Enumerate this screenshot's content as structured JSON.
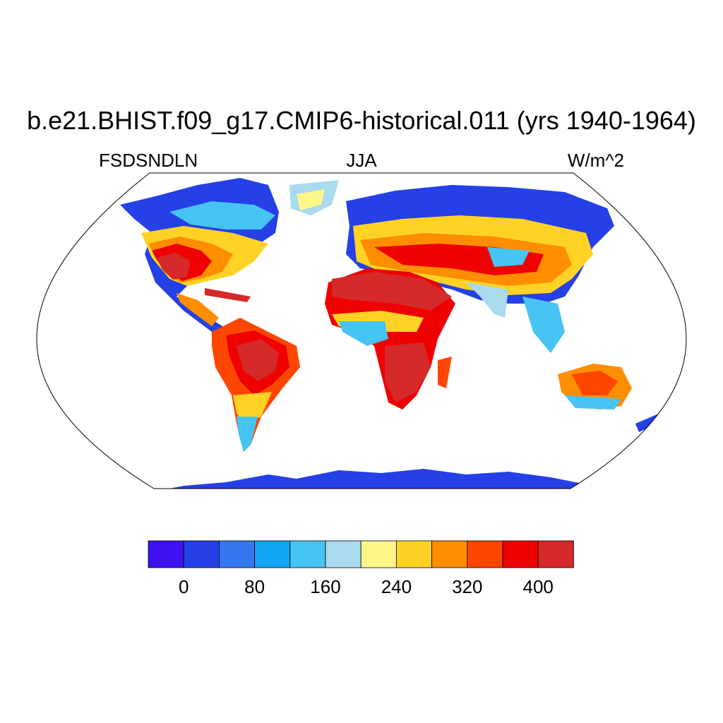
{
  "title": "b.e21.BHIST.f09_g17.CMIP6-historical.011 (yrs 1940-1964)",
  "left_label": "FSDSNDLN",
  "center_label": "JJA",
  "right_label": "W/m^2",
  "colorbar": {
    "colors": [
      "#3e12f0",
      "#2440e6",
      "#3477ee",
      "#13a5f5",
      "#46c4f4",
      "#a9daf0",
      "#fff68a",
      "#fed225",
      "#ff8d00",
      "#ff4600",
      "#ee0000",
      "#d62929"
    ],
    "tick_labels": [
      "0",
      "80",
      "160",
      "240",
      "320",
      "400"
    ]
  }
}
